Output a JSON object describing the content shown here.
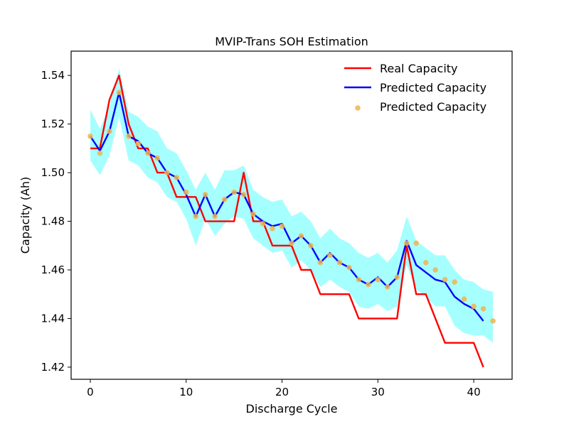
{
  "chart_data": {
    "type": "line",
    "title": "MVIP-Trans SOH Estimation",
    "xlabel": "Discharge Cycle",
    "ylabel": "Capacity (Ah)",
    "xlim": [
      -2,
      44
    ],
    "ylim": [
      1.415,
      1.55
    ],
    "xticks": [
      0,
      10,
      20,
      30,
      40
    ],
    "yticks": [
      1.42,
      1.44,
      1.46,
      1.48,
      1.5,
      1.52,
      1.54
    ],
    "xtick_labels": [
      "0",
      "10",
      "20",
      "30",
      "40"
    ],
    "ytick_labels": [
      "1.42",
      "1.44",
      "1.46",
      "1.48",
      "1.50",
      "1.52",
      "1.54"
    ],
    "legend_position": "top-right",
    "series": [
      {
        "name": "Real Capacity",
        "kind": "line",
        "color": "#ff0000",
        "x": [
          0,
          1,
          2,
          3,
          4,
          5,
          6,
          7,
          8,
          9,
          10,
          11,
          12,
          13,
          14,
          15,
          16,
          17,
          18,
          19,
          20,
          21,
          22,
          23,
          24,
          25,
          26,
          27,
          28,
          29,
          30,
          31,
          32,
          33,
          34,
          35,
          36,
          37,
          38,
          39,
          40,
          41
        ],
        "y": [
          1.51,
          1.51,
          1.53,
          1.54,
          1.52,
          1.51,
          1.51,
          1.5,
          1.5,
          1.49,
          1.49,
          1.49,
          1.48,
          1.48,
          1.48,
          1.48,
          1.5,
          1.48,
          1.48,
          1.47,
          1.47,
          1.47,
          1.46,
          1.46,
          1.45,
          1.45,
          1.45,
          1.45,
          1.44,
          1.44,
          1.44,
          1.44,
          1.44,
          1.47,
          1.45,
          1.45,
          1.44,
          1.43,
          1.43,
          1.43,
          1.43,
          1.42
        ]
      },
      {
        "name": "Predicted Capacity",
        "kind": "line",
        "color": "#0000ff",
        "x": [
          0,
          1,
          2,
          3,
          4,
          5,
          6,
          7,
          8,
          9,
          10,
          11,
          12,
          13,
          14,
          15,
          16,
          17,
          18,
          19,
          20,
          21,
          22,
          23,
          24,
          25,
          26,
          27,
          28,
          29,
          30,
          31,
          32,
          33,
          34,
          35,
          36,
          37,
          38,
          39,
          40,
          41
        ],
        "y": [
          1.515,
          1.509,
          1.517,
          1.533,
          1.515,
          1.513,
          1.508,
          1.506,
          1.5,
          1.498,
          1.491,
          1.482,
          1.491,
          1.482,
          1.489,
          1.492,
          1.491,
          1.483,
          1.48,
          1.478,
          1.479,
          1.471,
          1.474,
          1.47,
          1.463,
          1.467,
          1.463,
          1.461,
          1.456,
          1.454,
          1.457,
          1.453,
          1.457,
          1.472,
          1.462,
          1.459,
          1.456,
          1.455,
          1.449,
          1.446,
          1.444,
          1.439
        ]
      },
      {
        "name": "Predicted Capacity",
        "kind": "scatter",
        "color": "#f0b450",
        "x": [
          0,
          1,
          2,
          3,
          4,
          5,
          6,
          7,
          8,
          9,
          10,
          11,
          12,
          13,
          14,
          15,
          16,
          17,
          18,
          19,
          20,
          21,
          22,
          23,
          24,
          25,
          26,
          27,
          28,
          29,
          30,
          31,
          32,
          33,
          34,
          35,
          36,
          37,
          38,
          39,
          40,
          41,
          42
        ],
        "y": [
          1.515,
          1.508,
          1.517,
          1.533,
          1.515,
          1.512,
          1.508,
          1.506,
          1.5,
          1.498,
          1.492,
          1.482,
          1.491,
          1.482,
          1.489,
          1.492,
          1.491,
          1.483,
          1.479,
          1.477,
          1.478,
          1.471,
          1.474,
          1.47,
          1.463,
          1.466,
          1.463,
          1.461,
          1.456,
          1.454,
          1.456,
          1.453,
          1.457,
          1.471,
          1.471,
          1.463,
          1.46,
          1.456,
          1.455,
          1.448,
          1.445,
          1.444,
          1.439
        ]
      }
    ],
    "band": {
      "color": "#00ffff",
      "x": [
        0,
        1,
        2,
        3,
        4,
        5,
        6,
        7,
        8,
        9,
        10,
        11,
        12,
        13,
        14,
        15,
        16,
        17,
        18,
        19,
        20,
        21,
        22,
        23,
        24,
        25,
        26,
        27,
        28,
        29,
        30,
        31,
        32,
        33,
        34,
        35,
        36,
        37,
        38,
        39,
        40,
        41,
        42
      ],
      "lower": [
        1.505,
        1.499,
        1.507,
        1.523,
        1.505,
        1.503,
        1.498,
        1.496,
        1.49,
        1.488,
        1.481,
        1.47,
        1.481,
        1.474,
        1.479,
        1.482,
        1.481,
        1.473,
        1.47,
        1.467,
        1.468,
        1.461,
        1.464,
        1.46,
        1.453,
        1.456,
        1.453,
        1.451,
        1.445,
        1.444,
        1.446,
        1.443,
        1.445,
        1.462,
        1.452,
        1.449,
        1.445,
        1.445,
        1.437,
        1.434,
        1.433,
        1.433,
        1.43
      ],
      "upper": [
        1.526,
        1.518,
        1.527,
        1.543,
        1.525,
        1.523,
        1.519,
        1.517,
        1.51,
        1.508,
        1.501,
        1.493,
        1.5,
        1.493,
        1.501,
        1.501,
        1.503,
        1.493,
        1.49,
        1.488,
        1.489,
        1.482,
        1.484,
        1.48,
        1.473,
        1.477,
        1.473,
        1.471,
        1.467,
        1.465,
        1.467,
        1.463,
        1.468,
        1.482,
        1.472,
        1.469,
        1.466,
        1.466,
        1.46,
        1.456,
        1.455,
        1.452,
        1.451
      ]
    }
  }
}
